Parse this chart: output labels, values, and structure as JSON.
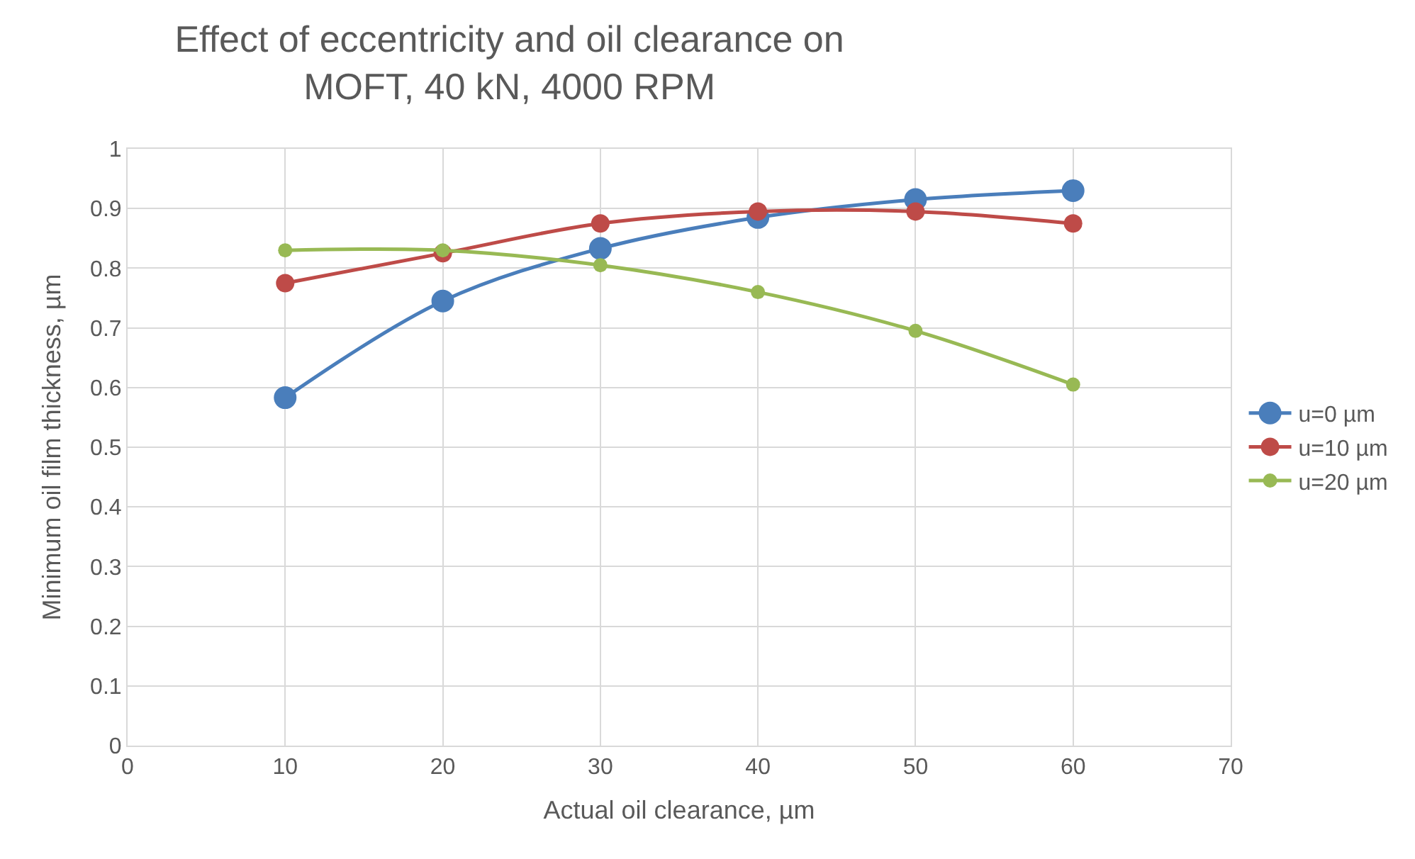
{
  "chart_data": {
    "type": "line",
    "title": "Effect of eccentricity and oil clearance on MOFT, 40 kN, 4000 RPM",
    "xlabel": "Actual oil clearance, µm",
    "ylabel": "Minimum oil film thickness, µm",
    "x": [
      10,
      20,
      30,
      40,
      50,
      60
    ],
    "series": [
      {
        "name": "u=0 µm",
        "color": "#4a7ebb",
        "values": [
          0.583,
          0.745,
          0.833,
          0.885,
          0.915,
          0.93
        ]
      },
      {
        "name": "u=10 µm",
        "color": "#be4b48",
        "values": [
          0.775,
          0.825,
          0.875,
          0.895,
          0.895,
          0.875
        ]
      },
      {
        "name": "u=20 µm",
        "color": "#98b954",
        "values": [
          0.83,
          0.83,
          0.805,
          0.76,
          0.695,
          0.605
        ]
      }
    ],
    "xlim": [
      0,
      70
    ],
    "xticks": [
      0,
      10,
      20,
      30,
      40,
      50,
      60,
      70
    ],
    "ylim": [
      0,
      1
    ],
    "yticks": [
      0,
      0.1,
      0.2,
      0.3,
      0.4,
      0.5,
      0.6,
      0.7,
      0.8,
      0.9,
      1
    ],
    "grid": true,
    "legend": "right",
    "marker": "circle",
    "line_style": "solid"
  }
}
